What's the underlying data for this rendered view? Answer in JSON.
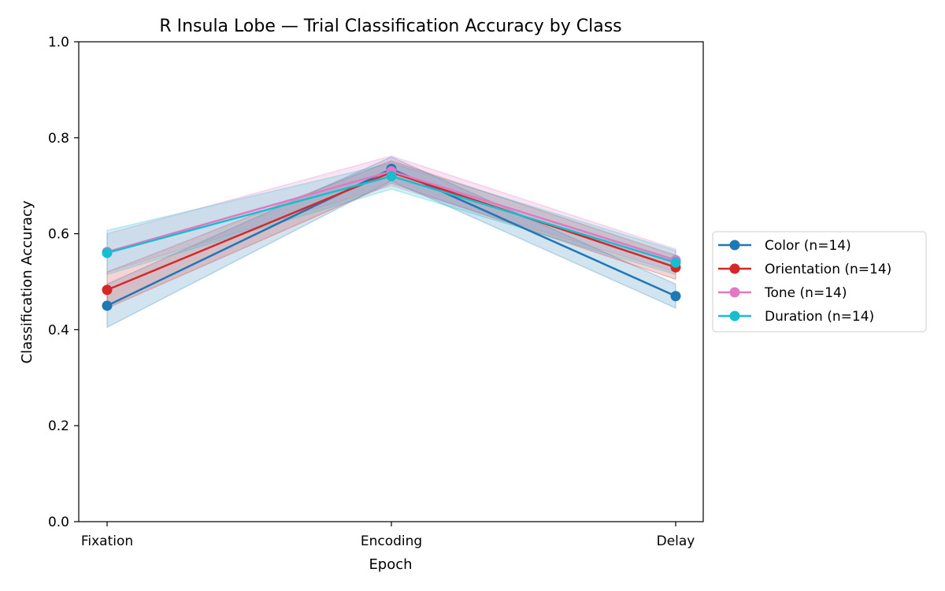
{
  "chart_data": {
    "type": "line",
    "title": "R Insula Lobe — Trial Classification Accuracy by Class",
    "xlabel": "Epoch",
    "ylabel": "Classification Accuracy",
    "categories": [
      "Fixation",
      "Encoding",
      "Delay"
    ],
    "ylim": [
      0,
      1.0
    ],
    "yticks": [
      "0.0",
      "0.2",
      "0.4",
      "0.6",
      "0.8",
      "1.0"
    ],
    "grid": false,
    "legend_position": "right-outside",
    "series": [
      {
        "name": "Color (n=14)",
        "color": "#1f77b4",
        "values": [
          0.45,
          0.735,
          0.47
        ],
        "lower": [
          0.405,
          0.71,
          0.445
        ],
        "upper": [
          0.495,
          0.76,
          0.495
        ]
      },
      {
        "name": "Orientation (n=14)",
        "color": "#d62728",
        "values": [
          0.483,
          0.728,
          0.53
        ],
        "lower": [
          0.445,
          0.705,
          0.505
        ],
        "upper": [
          0.52,
          0.752,
          0.555
        ]
      },
      {
        "name": "Tone (n=14)",
        "color": "#e377c2",
        "values": [
          0.562,
          0.73,
          0.545
        ],
        "lower": [
          0.52,
          0.7,
          0.52
        ],
        "upper": [
          0.6,
          0.762,
          0.568
        ]
      },
      {
        "name": "Duration (n=14)",
        "color": "#17becf",
        "values": [
          0.56,
          0.72,
          0.54
        ],
        "lower": [
          0.515,
          0.693,
          0.515
        ],
        "upper": [
          0.607,
          0.747,
          0.565
        ]
      }
    ]
  }
}
